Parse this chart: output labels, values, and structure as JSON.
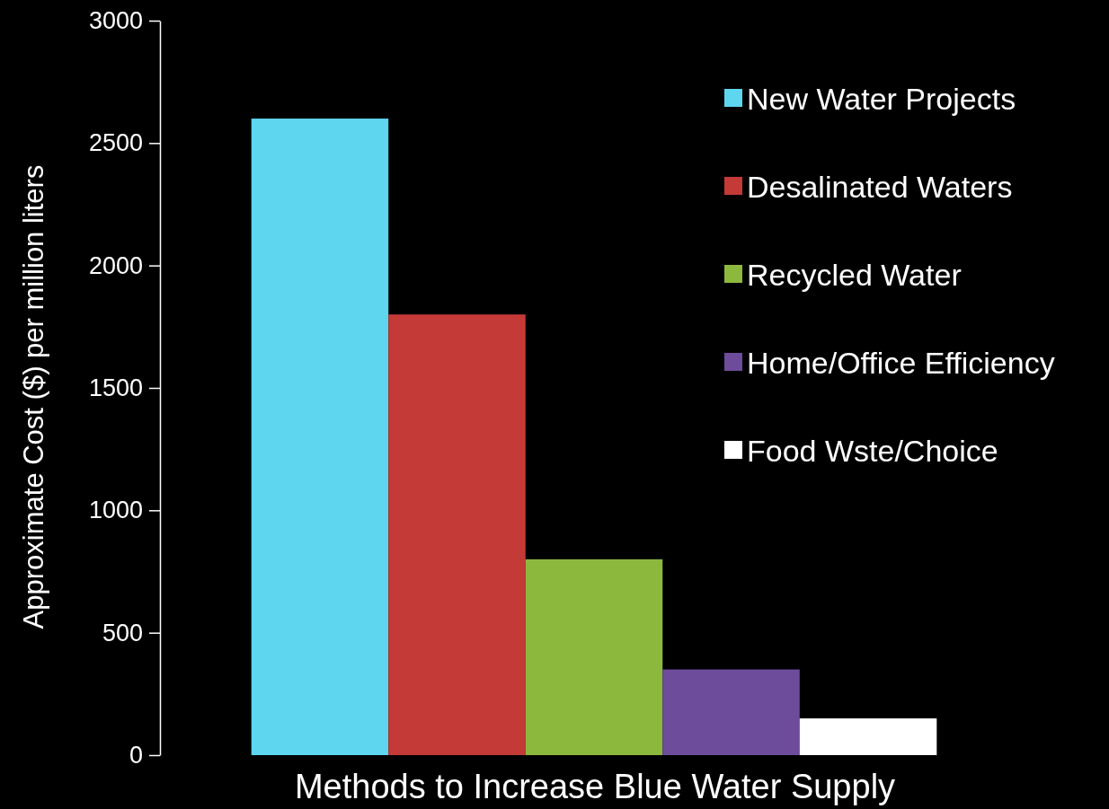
{
  "chart_data": {
    "type": "bar",
    "xlabel": "Methods to Increase Blue Water Supply",
    "ylabel": "Approximate Cost ($) per million liters",
    "categories": [
      null
    ],
    "series": [
      {
        "name": "New Water Projects",
        "color": "#5ed6f0",
        "values": [
          2600
        ]
      },
      {
        "name": "Desalinated Waters",
        "color": "#c43a36",
        "values": [
          1800
        ]
      },
      {
        "name": "Recycled Water",
        "color": "#8db83e",
        "values": [
          800
        ]
      },
      {
        "name": "Home/Office Efficiency",
        "color": "#6e4c9c",
        "values": [
          350
        ]
      },
      {
        "name": "Food Wste/Choice",
        "color": "#ffffff",
        "values": [
          150
        ]
      }
    ],
    "ylim": [
      0,
      3000
    ],
    "yticks": [
      0,
      500,
      1000,
      1500,
      2000,
      2500,
      3000
    ],
    "grid": false,
    "legend": "top right"
  }
}
